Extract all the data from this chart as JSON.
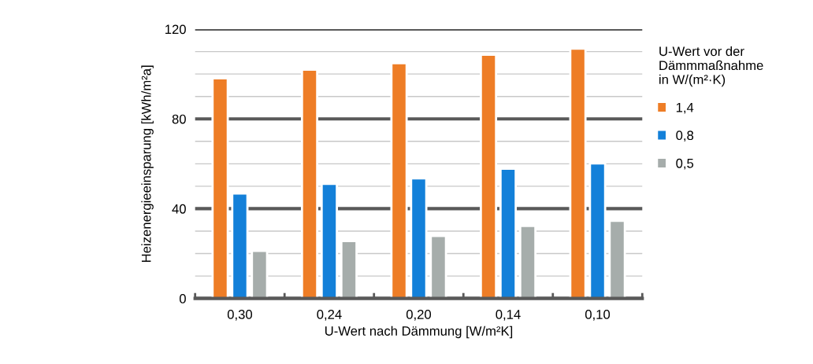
{
  "chart_data": {
    "type": "bar",
    "xlabel": "U-Wert nach Dämmung [W/m²K]",
    "ylabel": "Heizenergieeinsparung [kWh/m²a]",
    "legend_title": "U-Wert vor der\nDämmmaßnahme\nin W/(m²·K)",
    "categories": [
      "0,30",
      "0,24",
      "0,20",
      "0,14",
      "0,10"
    ],
    "series": [
      {
        "name": "1,4",
        "color": "#ee7d26",
        "values": [
          98.1,
          101.9,
          104.8,
          108.6,
          111.3
        ]
      },
      {
        "name": "0,8",
        "color": "#1380d9",
        "values": [
          46.8,
          51.1,
          53.5,
          57.8,
          60.2
        ]
      },
      {
        "name": "0,5",
        "color": "#a6adab",
        "values": [
          21.2,
          25.6,
          27.9,
          32.3,
          34.6
        ]
      }
    ],
    "ylim": [
      0,
      120
    ],
    "yticks": [
      0,
      {
        "value": 10,
        "label": null
      },
      {
        "value": 20,
        "label": null
      },
      {
        "value": 30,
        "label": null
      },
      40,
      {
        "value": 50,
        "label": null
      },
      {
        "value": 60,
        "label": null
      },
      {
        "value": 70,
        "label": null
      },
      80,
      {
        "value": 90,
        "label": null
      },
      {
        "value": 100,
        "label": null
      },
      {
        "value": 110,
        "label": null
      },
      120
    ],
    "grid": "y",
    "legend": "right"
  }
}
